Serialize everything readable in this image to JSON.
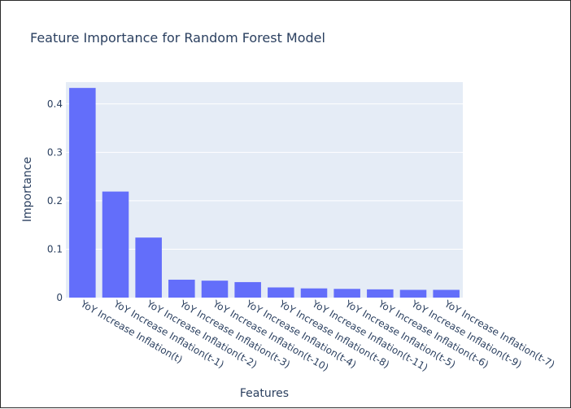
{
  "chart_data": {
    "type": "bar",
    "title": "Feature Importance for Random Forest Model",
    "xlabel": "Features",
    "ylabel": "Importance",
    "categories": [
      "YoY Increase Inflation(t)",
      "YoY Increase Inflation(t-1)",
      "YoY Increase Inflation(t-2)",
      "YoY Increase Inflation(t-3)",
      "YoY Increase Inflation(t-10)",
      "YoY Increase Inflation(t-4)",
      "YoY Increase Inflation(t-8)",
      "YoY Increase Inflation(t-11)",
      "YoY Increase Inflation(t-5)",
      "YoY Increase Inflation(t-6)",
      "YoY Increase Inflation(t-9)",
      "YoY Increase Inflation(t-7)"
    ],
    "values": [
      0.433,
      0.219,
      0.124,
      0.037,
      0.035,
      0.032,
      0.021,
      0.019,
      0.018,
      0.017,
      0.016,
      0.016
    ],
    "ylim": [
      0,
      0.445
    ],
    "yticks": [
      0,
      0.1,
      0.2,
      0.3,
      0.4
    ],
    "ytick_labels": [
      "0",
      "0.1",
      "0.2",
      "0.3",
      "0.4"
    ],
    "grid": true,
    "legend": false,
    "bar_color": "#636efa",
    "plot_bg": "#e5ecf6",
    "text_color": "#2a3f5f"
  }
}
